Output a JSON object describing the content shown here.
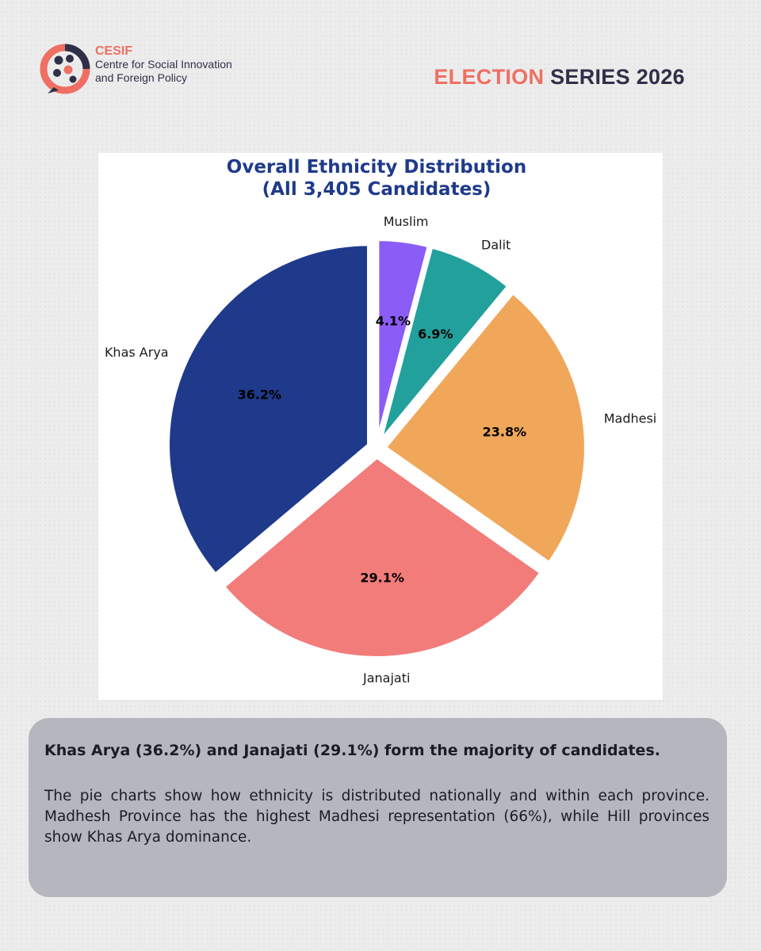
{
  "brand": {
    "acronym": "CESIF",
    "name_line1": "Centre for Social Innovation",
    "name_line2": "and Foreign Policy",
    "colors": {
      "coral": "#ef6f63",
      "navy": "#2f3048"
    }
  },
  "series": {
    "highlight": "ELECTION",
    "rest": "SERIES 2026"
  },
  "chart_data": {
    "type": "pie",
    "title_line1": "Overall Ethnicity Distribution",
    "title_line2": "(All 3,405 Candidates)",
    "start_angle_deg": 90,
    "direction": "counterclockwise",
    "exploded": true,
    "slices": [
      {
        "label": "Khas Arya",
        "value": 36.2,
        "pct_label": "36.2%",
        "color": "#1f3a8a"
      },
      {
        "label": "Janajati",
        "value": 29.1,
        "pct_label": "29.1%",
        "color": "#f27c7a"
      },
      {
        "label": "Madhesi",
        "value": 23.8,
        "pct_label": "23.8%",
        "color": "#f0a75a"
      },
      {
        "label": "Dalit",
        "value": 6.9,
        "pct_label": "6.9%",
        "color": "#22a09c"
      },
      {
        "label": "Muslim",
        "value": 4.1,
        "pct_label": "4.1%",
        "color": "#8b5cf6"
      }
    ]
  },
  "note": {
    "headline": "Khas Arya (36.2%) and Janajati (29.1%) form the majority of candidates.",
    "body": "The pie charts show how ethnicity is distributed nationally and within each province. Madhesh Province has the highest Madhesi representation (66%), while Hill provinces show Khas Arya dominance."
  }
}
